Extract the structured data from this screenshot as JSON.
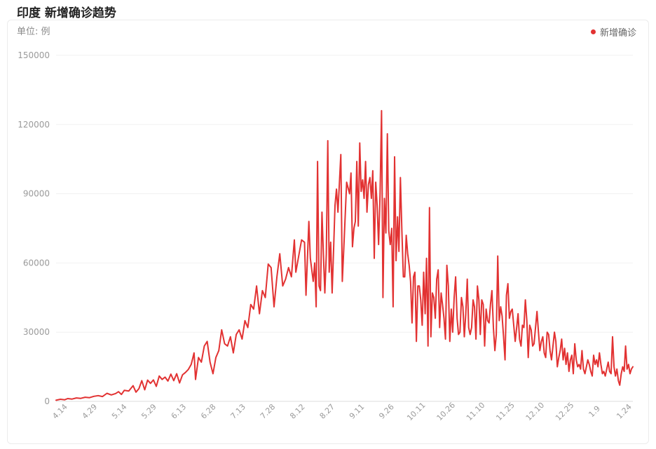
{
  "header": {
    "title": "印度 新增确诊趋势",
    "unit": "单位: 例"
  },
  "legend": {
    "label": "新增确诊",
    "color": "#e23232"
  },
  "chart_data": {
    "type": "line",
    "title": "印度 新增确诊趋势",
    "ylabel": "单位: 例",
    "ylim": [
      0,
      150000
    ],
    "yticks": [
      0,
      30000,
      60000,
      90000,
      120000,
      150000
    ],
    "xticks": [
      "4.14",
      "4.29",
      "5.14",
      "5.29",
      "6.13",
      "6.28",
      "7.13",
      "7.28",
      "8.12",
      "8.27",
      "9.11",
      "9.26",
      "10.11",
      "10.26",
      "11.10",
      "11.25",
      "12.10",
      "12.25",
      "1.9",
      "1.24"
    ],
    "grid": true,
    "legend_position": "top-right",
    "series": [
      {
        "name": "新增确诊",
        "color": "#e23232",
        "points": [
          [
            0,
            500
          ],
          [
            3,
            900
          ],
          [
            6,
            700
          ],
          [
            8,
            1200
          ],
          [
            11,
            1000
          ],
          [
            14,
            1500
          ],
          [
            17,
            1300
          ],
          [
            20,
            1800
          ],
          [
            23,
            1600
          ],
          [
            26,
            2200
          ],
          [
            29,
            2500
          ],
          [
            32,
            2100
          ],
          [
            35,
            3500
          ],
          [
            38,
            2800
          ],
          [
            41,
            3400
          ],
          [
            43,
            4200
          ],
          [
            45,
            3000
          ],
          [
            47,
            4800
          ],
          [
            50,
            4500
          ],
          [
            53,
            6800
          ],
          [
            55,
            4000
          ],
          [
            57,
            5500
          ],
          [
            59,
            9000
          ],
          [
            61,
            5000
          ],
          [
            63,
            9200
          ],
          [
            65,
            7800
          ],
          [
            67,
            9300
          ],
          [
            69,
            6500
          ],
          [
            71,
            11000
          ],
          [
            73,
            9500
          ],
          [
            75,
            10500
          ],
          [
            77,
            8800
          ],
          [
            79,
            11800
          ],
          [
            81,
            9000
          ],
          [
            83,
            12000
          ],
          [
            85,
            8000
          ],
          [
            87,
            11500
          ],
          [
            89,
            12500
          ],
          [
            91,
            13800
          ],
          [
            93,
            16000
          ],
          [
            95,
            21000
          ],
          [
            96,
            9500
          ],
          [
            98,
            19000
          ],
          [
            100,
            17000
          ],
          [
            102,
            24000
          ],
          [
            104,
            26000
          ],
          [
            106,
            17000
          ],
          [
            108,
            12000
          ],
          [
            110,
            19000
          ],
          [
            112,
            22000
          ],
          [
            114,
            31000
          ],
          [
            116,
            25000
          ],
          [
            118,
            24000
          ],
          [
            120,
            28000
          ],
          [
            122,
            21000
          ],
          [
            124,
            29000
          ],
          [
            126,
            31000
          ],
          [
            128,
            27000
          ],
          [
            130,
            35000
          ],
          [
            132,
            32000
          ],
          [
            134,
            42000
          ],
          [
            136,
            40000
          ],
          [
            138,
            50000
          ],
          [
            140,
            38000
          ],
          [
            142,
            48000
          ],
          [
            144,
            45000
          ],
          [
            146,
            59500
          ],
          [
            148,
            58000
          ],
          [
            150,
            41000
          ],
          [
            152,
            54000
          ],
          [
            154,
            64000
          ],
          [
            156,
            50000
          ],
          [
            158,
            53000
          ],
          [
            160,
            58000
          ],
          [
            162,
            54000
          ],
          [
            164,
            70000
          ],
          [
            165,
            56000
          ],
          [
            167,
            63000
          ],
          [
            169,
            70000
          ],
          [
            171,
            69000
          ],
          [
            172,
            46000
          ],
          [
            174,
            78000
          ],
          [
            175,
            62000
          ],
          [
            177,
            52000
          ],
          [
            178,
            60000
          ],
          [
            179,
            41000
          ],
          [
            180,
            104000
          ],
          [
            181,
            50000
          ],
          [
            182,
            48000
          ],
          [
            183,
            82000
          ],
          [
            184,
            64000
          ],
          [
            185,
            47000
          ],
          [
            186,
            64000
          ],
          [
            187,
            113000
          ],
          [
            188,
            56000
          ],
          [
            189,
            69000
          ],
          [
            190,
            47000
          ],
          [
            191,
            66000
          ],
          [
            192,
            85000
          ],
          [
            193,
            92000
          ],
          [
            194,
            82000
          ],
          [
            196,
            107000
          ],
          [
            197,
            52000
          ],
          [
            198,
            66000
          ],
          [
            200,
            95000
          ],
          [
            202,
            90000
          ],
          [
            203,
            99000
          ],
          [
            204,
            67000
          ],
          [
            205,
            75000
          ],
          [
            206,
            78000
          ],
          [
            207,
            104000
          ],
          [
            208,
            76000
          ],
          [
            209,
            112000
          ],
          [
            210,
            91000
          ],
          [
            211,
            96000
          ],
          [
            212,
            88000
          ],
          [
            213,
            104000
          ],
          [
            214,
            82000
          ],
          [
            215,
            94000
          ],
          [
            216,
            97000
          ],
          [
            217,
            88000
          ],
          [
            218,
            100000
          ],
          [
            219,
            62000
          ],
          [
            220,
            95000
          ],
          [
            221,
            85000
          ],
          [
            222,
            68000
          ],
          [
            223,
            90000
          ],
          [
            224,
            126000
          ],
          [
            225,
            45000
          ],
          [
            226,
            88000
          ],
          [
            227,
            73000
          ],
          [
            228,
            116000
          ],
          [
            229,
            74000
          ],
          [
            230,
            68000
          ],
          [
            231,
            75000
          ],
          [
            232,
            41000
          ],
          [
            233,
            106000
          ],
          [
            234,
            61000
          ],
          [
            235,
            80000
          ],
          [
            236,
            65000
          ],
          [
            237,
            97000
          ],
          [
            238,
            74000
          ],
          [
            239,
            54000
          ],
          [
            240,
            54000
          ],
          [
            241,
            72000
          ],
          [
            242,
            64000
          ],
          [
            243,
            59000
          ],
          [
            244,
            52000
          ],
          [
            245,
            34000
          ],
          [
            246,
            54000
          ],
          [
            247,
            56000
          ],
          [
            248,
            26000
          ],
          [
            249,
            50000
          ],
          [
            250,
            50000
          ],
          [
            251,
            44000
          ],
          [
            252,
            33000
          ],
          [
            253,
            56000
          ],
          [
            254,
            38000
          ],
          [
            255,
            62000
          ],
          [
            256,
            24000
          ],
          [
            257,
            84000
          ],
          [
            258,
            28000
          ],
          [
            259,
            47000
          ],
          [
            260,
            45000
          ],
          [
            261,
            36000
          ],
          [
            262,
            53000
          ],
          [
            263,
            57000
          ],
          [
            264,
            32000
          ],
          [
            265,
            47000
          ],
          [
            266,
            42000
          ],
          [
            267,
            36000
          ],
          [
            268,
            27000
          ],
          [
            269,
            59000
          ],
          [
            270,
            50000
          ],
          [
            271,
            26000
          ],
          [
            272,
            40000
          ],
          [
            273,
            30000
          ],
          [
            274,
            45000
          ],
          [
            275,
            54000
          ],
          [
            276,
            36000
          ],
          [
            277,
            29000
          ],
          [
            278,
            30000
          ],
          [
            279,
            45000
          ],
          [
            280,
            41000
          ],
          [
            281,
            28000
          ],
          [
            282,
            38000
          ],
          [
            283,
            53000
          ],
          [
            284,
            32000
          ],
          [
            285,
            29000
          ],
          [
            286,
            32000
          ],
          [
            287,
            44000
          ],
          [
            288,
            41000
          ],
          [
            289,
            27000
          ],
          [
            290,
            50000
          ],
          [
            291,
            44000
          ],
          [
            292,
            29000
          ],
          [
            293,
            44000
          ],
          [
            294,
            42000
          ],
          [
            295,
            24000
          ],
          [
            296,
            40000
          ],
          [
            297,
            35000
          ],
          [
            298,
            34000
          ],
          [
            299,
            42000
          ],
          [
            300,
            48000
          ],
          [
            301,
            32000
          ],
          [
            302,
            22000
          ],
          [
            303,
            29000
          ],
          [
            304,
            63000
          ],
          [
            305,
            35000
          ],
          [
            306,
            41000
          ],
          [
            307,
            37000
          ],
          [
            308,
            28000
          ],
          [
            309,
            18000
          ],
          [
            310,
            46000
          ],
          [
            311,
            51000
          ],
          [
            312,
            36000
          ],
          [
            313,
            39000
          ],
          [
            314,
            40000
          ],
          [
            315,
            33000
          ],
          [
            316,
            26000
          ],
          [
            317,
            32000
          ],
          [
            318,
            38000
          ],
          [
            319,
            27000
          ],
          [
            320,
            24000
          ],
          [
            321,
            33000
          ],
          [
            322,
            32000
          ],
          [
            323,
            44000
          ],
          [
            324,
            35000
          ],
          [
            325,
            19000
          ],
          [
            326,
            33000
          ],
          [
            327,
            31000
          ],
          [
            328,
            24000
          ],
          [
            329,
            25000
          ],
          [
            330,
            32000
          ],
          [
            331,
            39000
          ],
          [
            332,
            30000
          ],
          [
            333,
            22000
          ],
          [
            334,
            26000
          ],
          [
            335,
            28000
          ],
          [
            336,
            21000
          ],
          [
            337,
            19000
          ],
          [
            338,
            30000
          ],
          [
            339,
            29000
          ],
          [
            340,
            22000
          ],
          [
            341,
            18000
          ],
          [
            342,
            24000
          ],
          [
            343,
            30000
          ],
          [
            344,
            26000
          ],
          [
            345,
            15000
          ],
          [
            346,
            19000
          ],
          [
            347,
            22000
          ],
          [
            348,
            27000
          ],
          [
            349,
            18000
          ],
          [
            350,
            23000
          ],
          [
            351,
            16000
          ],
          [
            352,
            21000
          ],
          [
            353,
            13000
          ],
          [
            354,
            18000
          ],
          [
            355,
            20000
          ],
          [
            356,
            12000
          ],
          [
            357,
            25000
          ],
          [
            358,
            18000
          ],
          [
            359,
            15000
          ],
          [
            360,
            16000
          ],
          [
            361,
            14000
          ],
          [
            362,
            22000
          ],
          [
            363,
            14000
          ],
          [
            364,
            12000
          ],
          [
            365,
            15000
          ],
          [
            366,
            18000
          ],
          [
            367,
            16000
          ],
          [
            368,
            13000
          ],
          [
            369,
            11000
          ],
          [
            370,
            20000
          ],
          [
            371,
            16000
          ],
          [
            372,
            18000
          ],
          [
            373,
            15000
          ],
          [
            374,
            21000
          ],
          [
            375,
            16000
          ],
          [
            376,
            12000
          ],
          [
            377,
            13000
          ],
          [
            378,
            11000
          ],
          [
            379,
            14000
          ],
          [
            380,
            17000
          ],
          [
            381,
            13000
          ],
          [
            382,
            12000
          ],
          [
            383,
            28000
          ],
          [
            384,
            15000
          ],
          [
            385,
            11000
          ],
          [
            386,
            14000
          ],
          [
            387,
            9000
          ],
          [
            388,
            7000
          ],
          [
            389,
            12000
          ],
          [
            390,
            15000
          ],
          [
            391,
            13000
          ],
          [
            392,
            24000
          ],
          [
            393,
            14000
          ],
          [
            394,
            16000
          ],
          [
            395,
            12000
          ],
          [
            396,
            14000
          ],
          [
            397,
            15000
          ]
        ]
      }
    ]
  }
}
